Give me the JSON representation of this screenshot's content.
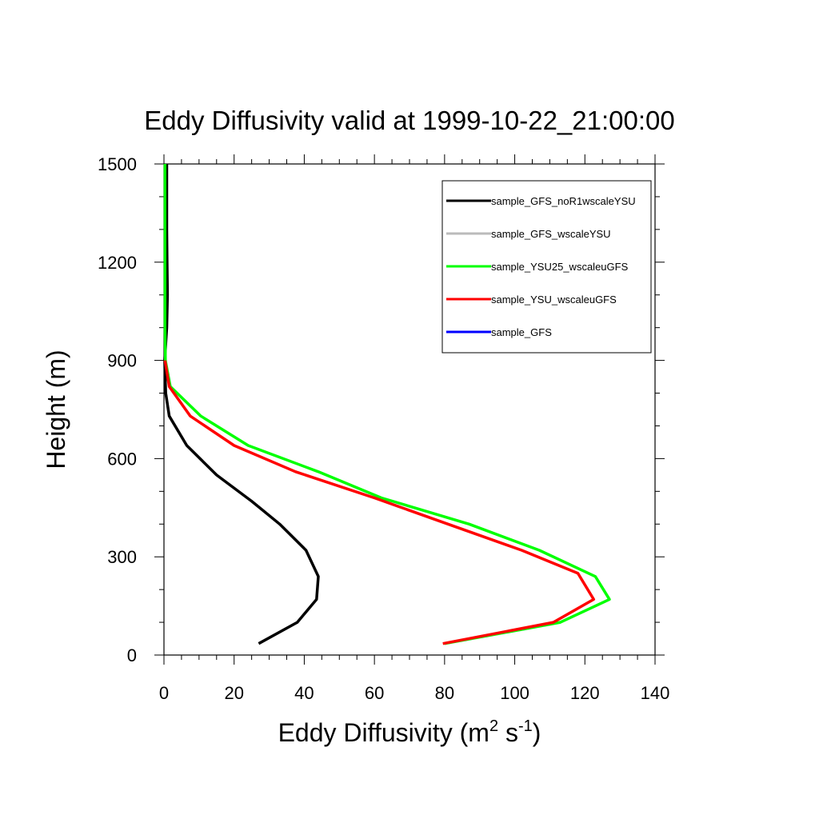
{
  "chart_data": {
    "type": "line",
    "title": "Eddy Diffusivity valid at 1999-10-22_21:00:00",
    "xlabel": "Eddy Diffusivity (m",
    "xlabel_sup1": "2",
    "xlabel_mid": " s",
    "xlabel_sup2": "-1",
    "xlabel_end": ")",
    "ylabel": "Height (m)",
    "xlim": [
      0,
      140
    ],
    "ylim": [
      0,
      1500
    ],
    "xticks": [
      0,
      20,
      40,
      60,
      80,
      100,
      120,
      140
    ],
    "yticks": [
      0,
      300,
      600,
      900,
      1200,
      1500
    ],
    "legend_position": "top-right",
    "series": [
      {
        "name": "sample_GFS_noR1wscaleYSU",
        "color": "#000000",
        "x": [
          27,
          38,
          43.5,
          44,
          40.5,
          33,
          25,
          15,
          6.5,
          1.5,
          0.5,
          0.2,
          0.8,
          1.0,
          0.9,
          0.8,
          0.8
        ],
        "y": [
          35,
          100,
          170,
          240,
          320,
          400,
          470,
          550,
          640,
          730,
          800,
          900,
          1000,
          1100,
          1200,
          1300,
          1500
        ]
      },
      {
        "name": "sample_GFS_wscaleYSU",
        "color": "#bbbbbb",
        "x": [],
        "y": []
      },
      {
        "name": "sample_YSU25_wscaleuGFS",
        "color": "#00ff00",
        "x": [
          80,
          113,
          127,
          123,
          107,
          87,
          62,
          44,
          24,
          10.5,
          1.8,
          0.4,
          0.3,
          0.3,
          0.3,
          0.3
        ],
        "y": [
          35,
          100,
          170,
          240,
          320,
          400,
          480,
          560,
          640,
          730,
          820,
          900,
          1000,
          1100,
          1200,
          1500
        ]
      },
      {
        "name": "sample_YSU_wscaleuGFS",
        "color": "#ff0000",
        "x": [
          79.5,
          111,
          122.5,
          118,
          102,
          81,
          60,
          37.5,
          20,
          7.5,
          1.5,
          0.3
        ],
        "y": [
          35,
          100,
          170,
          250,
          320,
          400,
          480,
          560,
          640,
          730,
          820,
          900
        ]
      },
      {
        "name": "sample_GFS",
        "color": "#0000ff",
        "x": [],
        "y": []
      }
    ]
  }
}
